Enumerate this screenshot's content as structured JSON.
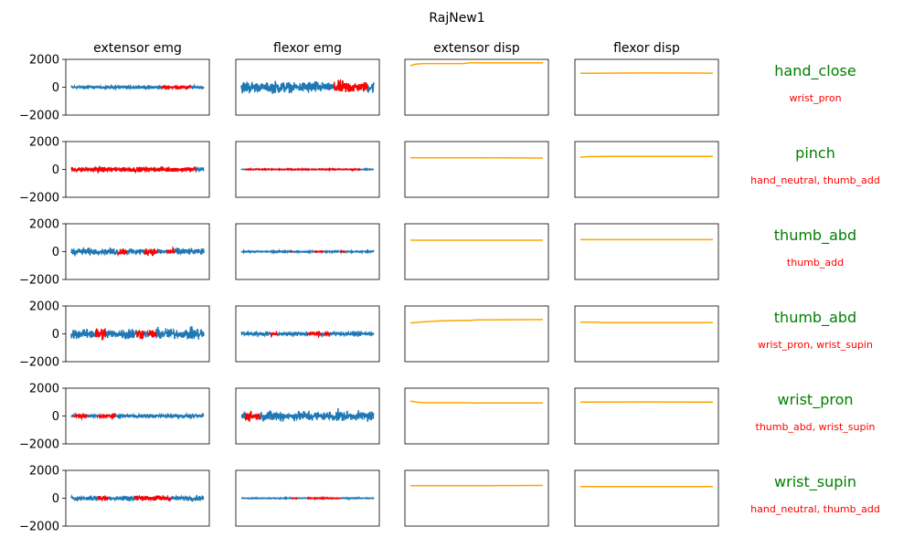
{
  "figure": {
    "title": "RajNew1"
  },
  "columns": [
    "extensor emg",
    "flexor emg",
    "extensor disp",
    "flexor disp"
  ],
  "colors": {
    "emg": "#1f77b4",
    "highlight": "#ff0000",
    "disp": "#ffa500",
    "gesture_label": "#008000",
    "secondary_label": "#ff0000"
  },
  "chart_data": {
    "type": "line",
    "ylim": [
      -2000,
      2000
    ],
    "yticks": [
      2000,
      0,
      -2000
    ],
    "ytick_labels": [
      "2000",
      "0",
      "−2000"
    ],
    "x_axis": "hidden",
    "x_range": [
      0,
      1
    ],
    "rows": [
      {
        "label": "hand_close",
        "sublabel": "wrist_pron",
        "extensor_emg": {
          "amplitude": 120,
          "highlights": [
            [
              0.68,
              0.9
            ]
          ]
        },
        "flexor_emg": {
          "amplitude": 520,
          "highlights": [
            [
              0.7,
              0.95
            ]
          ]
        },
        "extensor_disp": {
          "x": [
            0,
            0.04,
            0.1,
            0.2,
            0.4,
            0.45,
            0.6,
            0.8,
            1.0
          ],
          "y": [
            1550,
            1650,
            1700,
            1700,
            1700,
            1760,
            1760,
            1760,
            1760
          ]
        },
        "flexor_disp": {
          "x": [
            0,
            0.5,
            1.0
          ],
          "y": [
            1000,
            1020,
            1010
          ]
        }
      },
      {
        "label": "pinch",
        "sublabel": "hand_neutral, thumb_add",
        "extensor_emg": {
          "amplitude": 200,
          "highlights": [
            [
              0,
              0.94
            ]
          ]
        },
        "flexor_emg": {
          "amplitude": 40,
          "highlights": [
            [
              0.03,
              0.9
            ]
          ]
        },
        "extensor_disp": {
          "x": [
            0,
            0.5,
            1.0
          ],
          "y": [
            840,
            830,
            820
          ]
        },
        "flexor_disp": {
          "x": [
            0,
            0.05,
            0.2,
            1.0
          ],
          "y": [
            880,
            920,
            930,
            940
          ]
        }
      },
      {
        "label": "thumb_abd",
        "sublabel": "thumb_add",
        "extensor_emg": {
          "amplitude": 300,
          "highlights": [
            [
              0.35,
              0.42
            ],
            [
              0.55,
              0.65
            ],
            [
              0.72,
              0.78
            ]
          ]
        },
        "flexor_emg": {
          "amplitude": 60,
          "highlights": [
            [
              0.37,
              0.39
            ],
            [
              0.55,
              0.62
            ],
            [
              0.75,
              0.78
            ]
          ]
        },
        "extensor_disp": {
          "x": [
            0,
            0.5,
            1.0
          ],
          "y": [
            820,
            820,
            820
          ]
        },
        "flexor_disp": {
          "x": [
            0,
            0.5,
            1.0
          ],
          "y": [
            860,
            860,
            860
          ]
        }
      },
      {
        "label": "thumb_abd",
        "sublabel": "wrist_pron, wrist_supin",
        "extensor_emg": {
          "amplitude": 500,
          "highlights": [
            [
              0.18,
              0.26
            ],
            [
              0.49,
              0.55
            ],
            [
              0.58,
              0.64
            ]
          ]
        },
        "flexor_emg": {
          "amplitude": 180,
          "highlights": [
            [
              0.22,
              0.27
            ],
            [
              0.5,
              0.6
            ],
            [
              0.63,
              0.67
            ]
          ]
        },
        "extensor_disp": {
          "x": [
            0,
            0.1,
            0.2,
            0.3,
            0.45,
            0.5,
            0.7,
            1.0
          ],
          "y": [
            780,
            860,
            920,
            950,
            960,
            1000,
            1010,
            1020
          ]
        },
        "flexor_disp": {
          "x": [
            0,
            0.12,
            0.18,
            0.5,
            1.0
          ],
          "y": [
            840,
            830,
            800,
            800,
            800
          ]
        }
      },
      {
        "label": "wrist_pron",
        "sublabel": "thumb_abd, wrist_supin",
        "extensor_emg": {
          "amplitude": 160,
          "highlights": [
            [
              0.02,
              0.12
            ],
            [
              0.2,
              0.33
            ]
          ]
        },
        "flexor_emg": {
          "amplitude": 460,
          "highlights": [
            [
              0.03,
              0.14
            ]
          ]
        },
        "extensor_disp": {
          "x": [
            0,
            0.04,
            0.1,
            0.4,
            0.5,
            1.0
          ],
          "y": [
            1080,
            1000,
            960,
            960,
            940,
            940
          ]
        },
        "flexor_disp": {
          "x": [
            0,
            0.5,
            1.0
          ],
          "y": [
            1000,
            1010,
            1000
          ]
        }
      },
      {
        "label": "wrist_supin",
        "sublabel": "hand_neutral, thumb_add",
        "extensor_emg": {
          "amplitude": 220,
          "highlights": [
            [
              0.2,
              0.28
            ],
            [
              0.48,
              0.75
            ]
          ]
        },
        "flexor_emg": {
          "amplitude": 40,
          "highlights": [
            [
              0.38,
              0.42
            ],
            [
              0.5,
              0.75
            ]
          ]
        },
        "extensor_disp": {
          "x": [
            0,
            0.5,
            1.0
          ],
          "y": [
            900,
            900,
            920
          ]
        },
        "flexor_disp": {
          "x": [
            0,
            0.5,
            1.0
          ],
          "y": [
            840,
            840,
            840
          ]
        }
      }
    ]
  }
}
